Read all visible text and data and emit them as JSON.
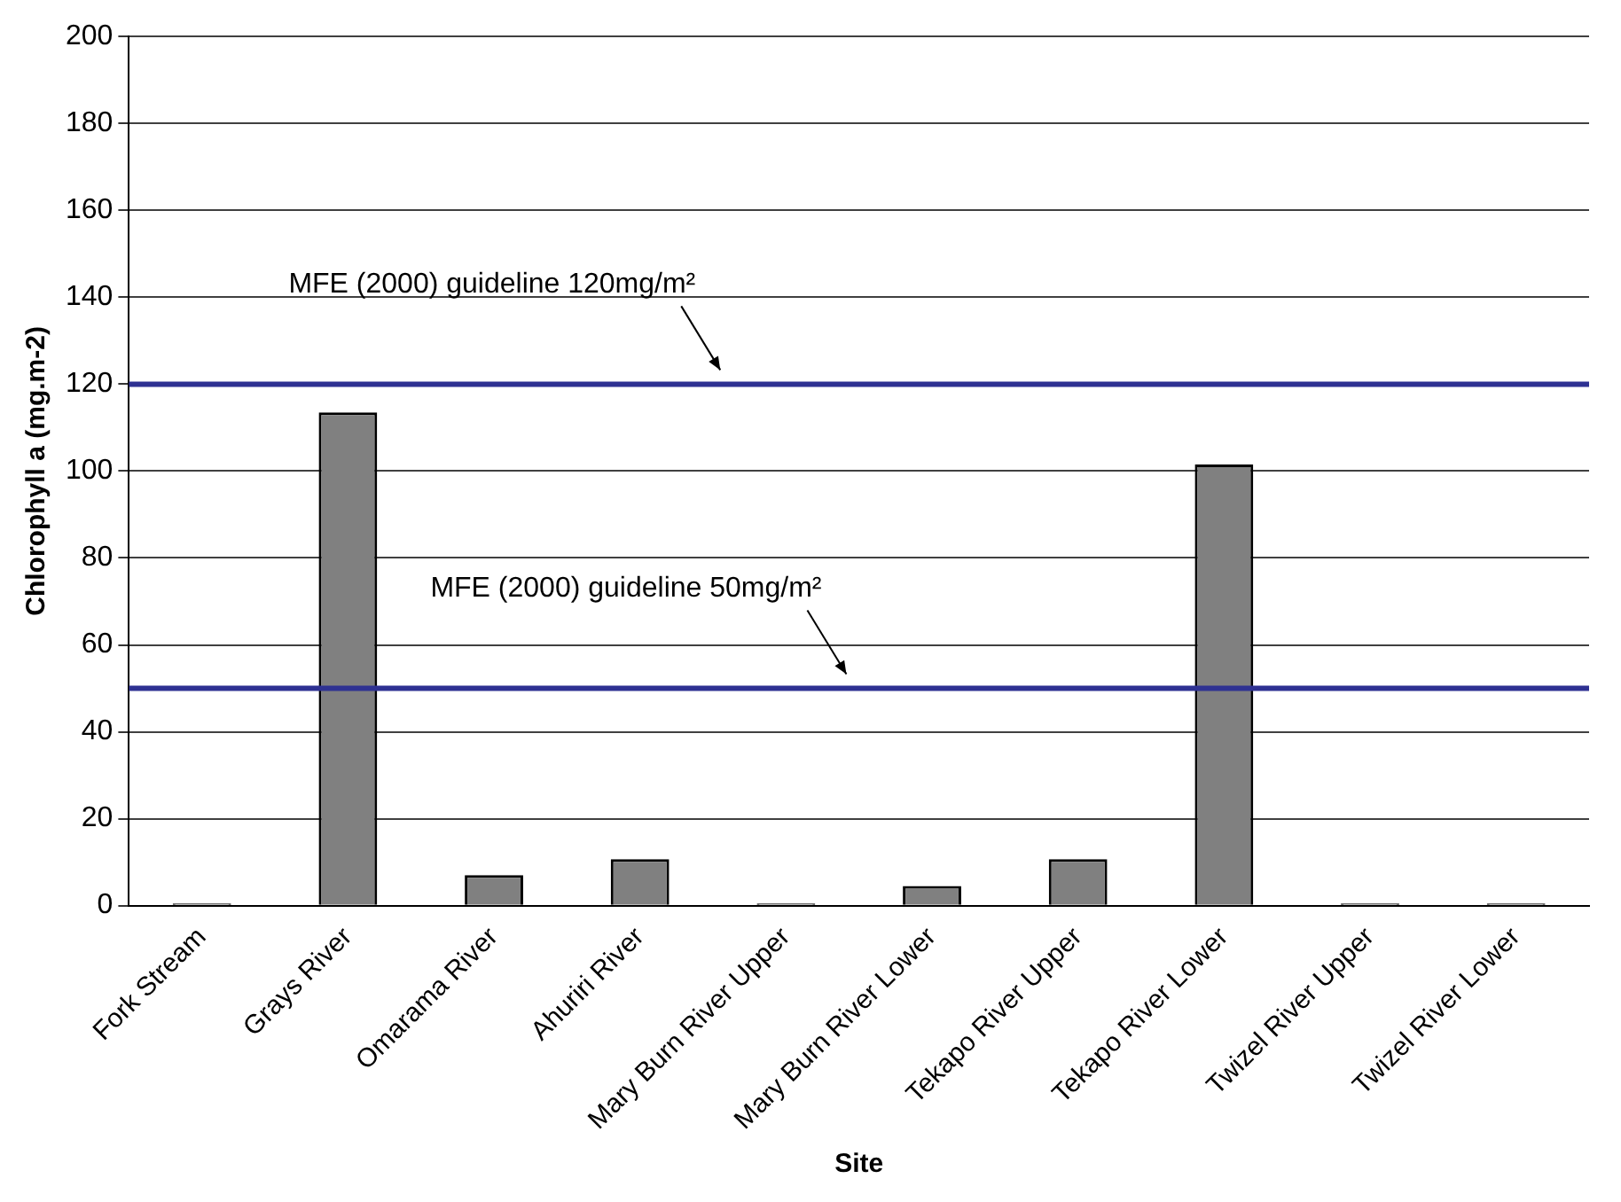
{
  "chart_data": {
    "type": "bar",
    "xlabel": "Site",
    "ylabel": "Chlorophyll a (mg.m-2)",
    "categories": [
      "Fork Stream",
      "Grays River",
      "Omarama River",
      "Ahuriri River",
      "Mary Burn River Upper",
      "Mary Burn River Lower",
      "Tekapo River Upper",
      "Tekapo River Lower",
      "Twizel River Upper",
      "Twizel River Lower"
    ],
    "values": [
      0.5,
      113.5,
      7,
      10.7,
      0.5,
      4.5,
      10.7,
      101.5,
      0.5,
      0.5
    ],
    "color": "#808080",
    "ylim": [
      0,
      200
    ],
    "yticks": [
      0,
      20,
      40,
      60,
      80,
      100,
      120,
      140,
      160,
      180,
      200
    ],
    "grid": "y",
    "legend": false,
    "ref_lines": [
      {
        "axis": "y",
        "value": 120,
        "label": "MFE (2000) guideline 120mg/m²",
        "color": "#2e3192"
      },
      {
        "axis": "y",
        "value": 50,
        "label": "MFE (2000) guideline 50mg/m²",
        "color": "#2e3192"
      }
    ]
  }
}
